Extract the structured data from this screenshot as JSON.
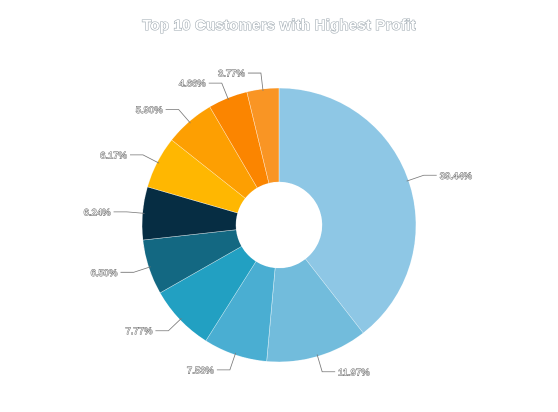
{
  "chart_data": {
    "type": "pie",
    "variant": "donut",
    "title": "Top 10 Customers with Highest Profit",
    "legend": "none",
    "labels_position": "outside",
    "slices": [
      {
        "label": "39.44%",
        "value": 39.44,
        "color": "#8ec7e5"
      },
      {
        "label": "11.97%",
        "value": 11.97,
        "color": "#72bcdc"
      },
      {
        "label": "7.53%",
        "value": 7.53,
        "color": "#4aaed2"
      },
      {
        "label": "7.77%",
        "value": 7.77,
        "color": "#22a0c2"
      },
      {
        "label": "6.50%",
        "value": 6.5,
        "color": "#136882"
      },
      {
        "label": "6.24%",
        "value": 6.24,
        "color": "#062d43"
      },
      {
        "label": "6.17%",
        "value": 6.17,
        "color": "#ffb701"
      },
      {
        "label": "5.90%",
        "value": 5.9,
        "color": "#fd9f02"
      },
      {
        "label": "4.66%",
        "value": 4.66,
        "color": "#fb8500"
      },
      {
        "label": "3.77%",
        "value": 3.77,
        "color": "#f99524"
      }
    ]
  }
}
